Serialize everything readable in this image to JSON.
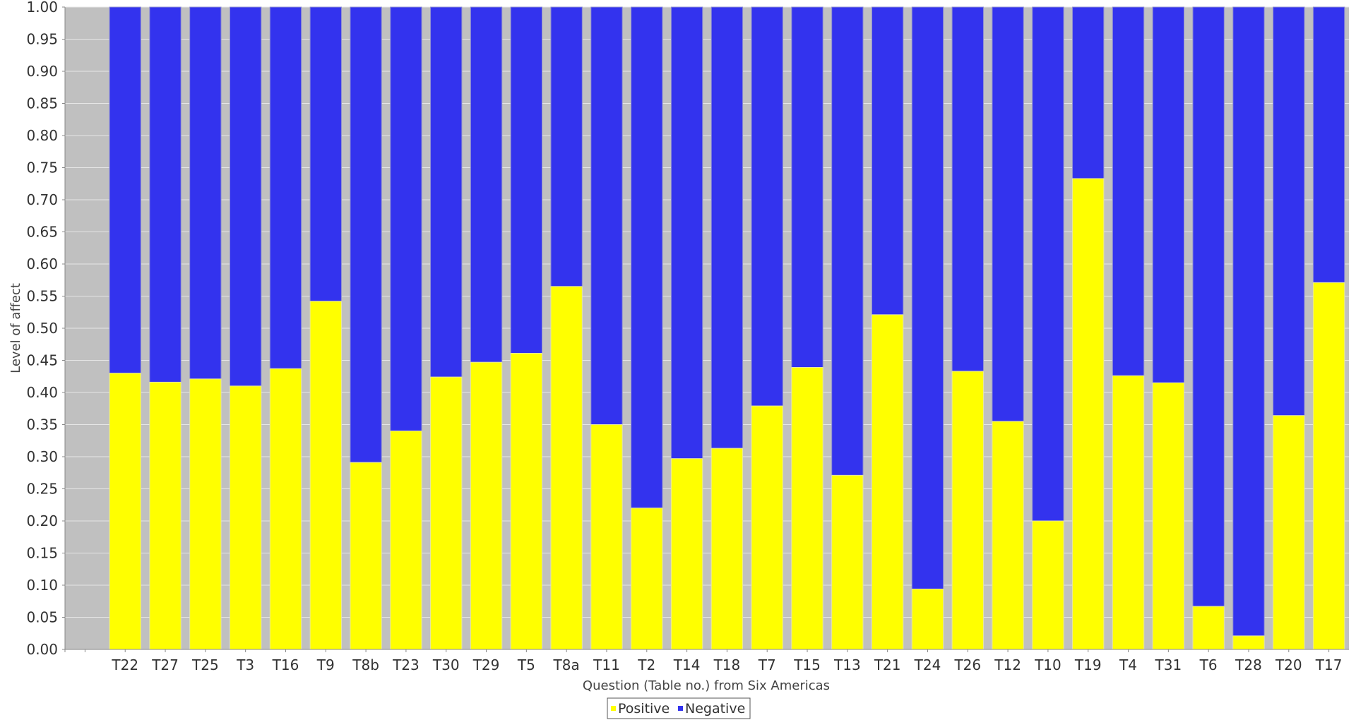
{
  "chart_data": {
    "type": "bar",
    "stacked": true,
    "xlabel": "Question (Table no.) from Six Americas",
    "ylabel": "Level of affect",
    "ylim": [
      0,
      1
    ],
    "ytick_step": 0.05,
    "grid": true,
    "legend_position": "bottom-center",
    "categories": [
      "",
      "T22",
      "T27",
      "T25",
      "T3",
      "T16",
      "T9",
      "T8b",
      "T23",
      "T30",
      "T29",
      "T5",
      "T8a",
      "T11",
      "T2",
      "T14",
      "T18",
      "T7",
      "T15",
      "T13",
      "T21",
      "T24",
      "T26",
      "T12",
      "T10",
      "T19",
      "T4",
      "T31",
      "T6",
      "T28",
      "T20",
      "T17"
    ],
    "series": [
      {
        "name": "Positive",
        "color": "#ffff00",
        "values": [
          null,
          0.43,
          0.416,
          0.421,
          0.41,
          0.437,
          0.542,
          0.291,
          0.34,
          0.424,
          0.447,
          0.461,
          0.565,
          0.35,
          0.22,
          0.297,
          0.313,
          0.379,
          0.439,
          0.271,
          0.521,
          0.094,
          0.433,
          0.355,
          0.2,
          0.733,
          0.426,
          0.415,
          0.067,
          0.021,
          0.364,
          0.571
        ]
      },
      {
        "name": "Negative",
        "color": "#3333ee",
        "values": [
          null,
          0.57,
          0.584,
          0.579,
          0.59,
          0.563,
          0.458,
          0.709,
          0.66,
          0.576,
          0.553,
          0.539,
          0.435,
          0.65,
          0.78,
          0.703,
          0.687,
          0.621,
          0.561,
          0.729,
          0.479,
          0.906,
          0.567,
          0.645,
          0.8,
          0.267,
          0.574,
          0.585,
          0.933,
          0.979,
          0.636,
          0.429
        ]
      }
    ]
  },
  "colors": {
    "plot_background": "#c0c0c0",
    "gridline": "#e6e6e6",
    "positive": "#ffff00",
    "negative": "#3333ee"
  }
}
